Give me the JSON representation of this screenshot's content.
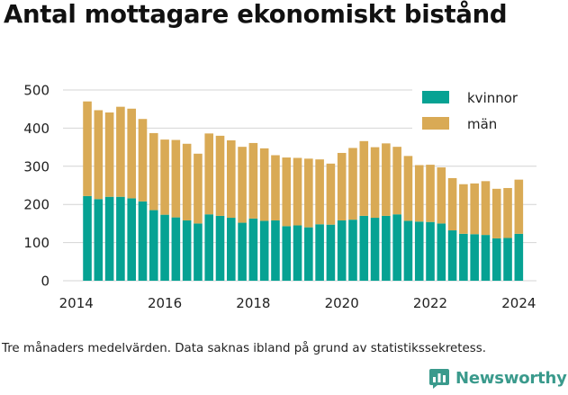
{
  "title": "Antal mottagare ekonomiskt bistånd",
  "caption": "Tre månaders medelvärden. Data saknas ibland på grund av statistikssekretess.",
  "brand": "Newsworthy",
  "brand_icon": "bar-chart-logo-icon",
  "colors": {
    "kvinnor": "#06a293",
    "man": "#d9aa55",
    "grid": "#d4d4d4",
    "brand": "#3a9a8c"
  },
  "chart_data": {
    "type": "bar",
    "stacked": true,
    "title": "Antal mottagare ekonomiskt bistånd",
    "xlim": [
      2013.7,
      2024.4
    ],
    "ylim": [
      0,
      500
    ],
    "yticks": [
      0,
      100,
      200,
      300,
      400,
      500
    ],
    "xticks": [
      2014,
      2016,
      2018,
      2020,
      2022,
      2024
    ],
    "legend": "top-right",
    "grid": true,
    "x": [
      2014.25,
      2014.5,
      2014.75,
      2015.0,
      2015.25,
      2015.5,
      2015.75,
      2016.0,
      2016.25,
      2016.5,
      2016.75,
      2017.0,
      2017.25,
      2017.5,
      2017.75,
      2018.0,
      2018.25,
      2018.5,
      2018.75,
      2019.0,
      2019.25,
      2019.5,
      2019.75,
      2020.0,
      2020.25,
      2020.5,
      2020.75,
      2021.0,
      2021.25,
      2021.5,
      2021.75,
      2022.0,
      2022.25,
      2022.5,
      2022.75,
      2023.0,
      2023.25,
      2023.5,
      2023.75,
      2024.0
    ],
    "series": [
      {
        "name": "kvinnor",
        "values": [
          222,
          214,
          220,
          220,
          216,
          208,
          185,
          173,
          166,
          158,
          150,
          174,
          170,
          165,
          152,
          163,
          157,
          158,
          143,
          145,
          140,
          148,
          147,
          158,
          160,
          170,
          165,
          170,
          174,
          157,
          155,
          154,
          150,
          132,
          123,
          122,
          120,
          111,
          112,
          123
        ]
      },
      {
        "name": "män",
        "values": [
          248,
          233,
          221,
          236,
          235,
          216,
          202,
          197,
          203,
          201,
          183,
          212,
          210,
          203,
          199,
          198,
          190,
          171,
          180,
          177,
          180,
          170,
          160,
          177,
          188,
          196,
          185,
          190,
          177,
          170,
          148,
          150,
          147,
          137,
          130,
          133,
          141,
          130,
          131,
          142
        ]
      }
    ]
  }
}
